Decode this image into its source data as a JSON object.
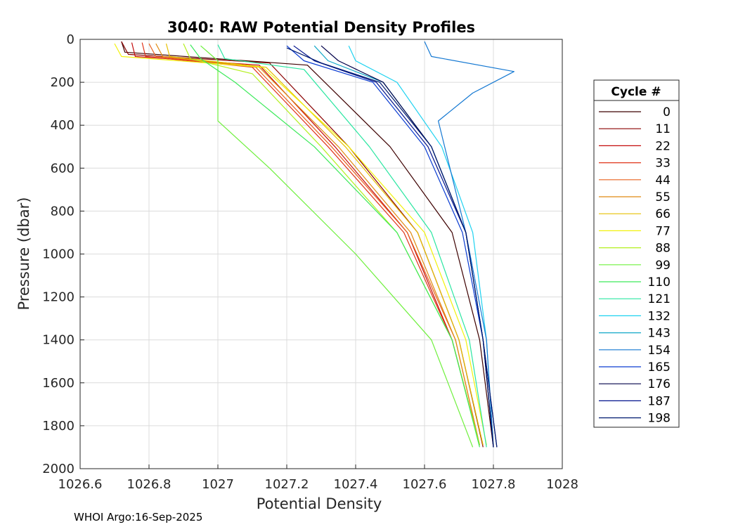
{
  "chart_data": {
    "type": "line",
    "title": "3040: RAW Potential Density Profiles",
    "xlabel": "Potential Density",
    "ylabel": "Pressure (dbar)",
    "xlim": [
      1026.6,
      1028
    ],
    "ylim": [
      0,
      2000
    ],
    "y_reversed": true,
    "grid": true,
    "x_ticks": [
      1026.6,
      1026.8,
      1027,
      1027.2,
      1027.4,
      1027.6,
      1027.8,
      1028
    ],
    "x_tick_labels": [
      "1026.6",
      "1026.8",
      "1027",
      "1027.2",
      "1027.4",
      "1027.6",
      "1027.8",
      "1028"
    ],
    "y_ticks": [
      0,
      200,
      400,
      600,
      800,
      1000,
      1200,
      1400,
      1600,
      1800,
      2000
    ],
    "y_tick_labels": [
      "0",
      "200",
      "400",
      "600",
      "800",
      "1000",
      "1200",
      "1400",
      "1600",
      "1800",
      "2000"
    ],
    "legend": {
      "title": "Cycle #",
      "position": "right-outside",
      "entries": [
        {
          "label": "0",
          "color": "#3d0000"
        },
        {
          "label": "11",
          "color": "#8a0000"
        },
        {
          "label": "22",
          "color": "#c40a0a"
        },
        {
          "label": "33",
          "color": "#e0341a"
        },
        {
          "label": "44",
          "color": "#e8601e"
        },
        {
          "label": "55",
          "color": "#e08a10"
        },
        {
          "label": "66",
          "color": "#e6c000"
        },
        {
          "label": "77",
          "color": "#f2f20a"
        },
        {
          "label": "88",
          "color": "#b4f01e"
        },
        {
          "label": "99",
          "color": "#6ef03c"
        },
        {
          "label": "110",
          "color": "#3cea5a"
        },
        {
          "label": "121",
          "color": "#28e6a0"
        },
        {
          "label": "132",
          "color": "#1ed2f0"
        },
        {
          "label": "143",
          "color": "#12a8c8"
        },
        {
          "label": "154",
          "color": "#1478d2"
        },
        {
          "label": "165",
          "color": "#0a3cd2"
        },
        {
          "label": "176",
          "color": "#00004a"
        },
        {
          "label": "187",
          "color": "#00108c"
        },
        {
          "label": "198",
          "color": "#001a70"
        }
      ]
    },
    "series": [
      {
        "name": "0",
        "color": "#3d0000",
        "x": [
          1026.72,
          1026.73,
          1027.26,
          1027.5,
          1027.68,
          1027.76,
          1027.8
        ],
        "y": [
          10,
          60,
          120,
          500,
          900,
          1400,
          1900
        ]
      },
      {
        "name": "11",
        "color": "#8a0000",
        "x": [
          1026.72,
          1026.74,
          1027.15,
          1027.38,
          1027.58,
          1027.7,
          1027.77
        ],
        "y": [
          10,
          70,
          110,
          500,
          900,
          1400,
          1900
        ]
      },
      {
        "name": "22",
        "color": "#c40a0a",
        "x": [
          1026.75,
          1026.76,
          1027.12,
          1027.34,
          1027.55,
          1027.68,
          1027.76
        ],
        "y": [
          15,
          80,
          120,
          500,
          900,
          1400,
          1890
        ]
      },
      {
        "name": "33",
        "color": "#e0341a",
        "x": [
          1026.78,
          1026.79,
          1027.1,
          1027.32,
          1027.54,
          1027.68,
          1027.76
        ],
        "y": [
          15,
          80,
          130,
          500,
          900,
          1400,
          1890
        ]
      },
      {
        "name": "44",
        "color": "#e8601e",
        "x": [
          1026.8,
          1026.82,
          1027.11,
          1027.33,
          1027.55,
          1027.69,
          1027.76
        ],
        "y": [
          20,
          80,
          130,
          500,
          900,
          1400,
          1890
        ]
      },
      {
        "name": "55",
        "color": "#e08a10",
        "x": [
          1026.82,
          1026.84,
          1027.12,
          1027.35,
          1027.56,
          1027.69,
          1027.76
        ],
        "y": [
          20,
          80,
          130,
          500,
          900,
          1400,
          1890
        ]
      },
      {
        "name": "66",
        "color": "#e6c000",
        "x": [
          1026.85,
          1026.86,
          1027.14,
          1027.37,
          1027.58,
          1027.7,
          1027.77
        ],
        "y": [
          20,
          80,
          130,
          500,
          900,
          1400,
          1890
        ]
      },
      {
        "name": "77",
        "color": "#f2f20a",
        "x": [
          1026.7,
          1026.72,
          1027.13,
          1027.38,
          1027.6,
          1027.72,
          1027.78
        ],
        "y": [
          20,
          80,
          130,
          500,
          900,
          1400,
          1890
        ]
      },
      {
        "name": "88",
        "color": "#b4f01e",
        "x": [
          1026.9,
          1026.92,
          1027.1,
          1027.3,
          1027.52,
          1027.68,
          1027.76
        ],
        "y": [
          20,
          90,
          160,
          500,
          900,
          1400,
          1890
        ]
      },
      {
        "name": "99",
        "color": "#6ef03c",
        "x": [
          1026.95,
          1027.0,
          1027.0,
          1027.15,
          1027.4,
          1027.62,
          1027.74
        ],
        "y": [
          30,
          100,
          380,
          600,
          1000,
          1400,
          1900
        ]
      },
      {
        "name": "110",
        "color": "#3cea5a",
        "x": [
          1026.92,
          1026.95,
          1027.05,
          1027.28,
          1027.52,
          1027.68,
          1027.76
        ],
        "y": [
          25,
          90,
          200,
          500,
          900,
          1400,
          1900
        ]
      },
      {
        "name": "121",
        "color": "#28e6a0",
        "x": [
          1027.0,
          1027.02,
          1027.25,
          1027.44,
          1027.62,
          1027.73,
          1027.78
        ],
        "y": [
          25,
          90,
          140,
          500,
          900,
          1400,
          1900
        ]
      },
      {
        "name": "132",
        "color": "#1ed2f0",
        "x": [
          1027.38,
          1027.4,
          1027.52,
          1027.65,
          1027.74,
          1027.78,
          1027.8
        ],
        "y": [
          30,
          100,
          200,
          500,
          900,
          1400,
          1900
        ]
      },
      {
        "name": "143",
        "color": "#12a8c8",
        "x": [
          1027.28,
          1027.32,
          1027.48,
          1027.62,
          1027.72,
          1027.77,
          1027.8
        ],
        "y": [
          30,
          100,
          200,
          500,
          900,
          1400,
          1900
        ]
      },
      {
        "name": "154",
        "color": "#1478d2",
        "x": [
          1027.6,
          1027.62,
          1027.86,
          1027.74,
          1027.64,
          1027.72,
          1027.78,
          1027.8
        ],
        "y": [
          10,
          80,
          150,
          250,
          380,
          900,
          1400,
          1900
        ]
      },
      {
        "name": "165",
        "color": "#0a3cd2",
        "x": [
          1027.2,
          1027.25,
          1027.45,
          1027.6,
          1027.71,
          1027.77,
          1027.8
        ],
        "y": [
          30,
          100,
          200,
          500,
          900,
          1400,
          1900
        ]
      },
      {
        "name": "176",
        "color": "#00004a",
        "x": [
          1027.3,
          1027.35,
          1027.48,
          1027.62,
          1027.72,
          1027.77,
          1027.8
        ],
        "y": [
          30,
          100,
          200,
          500,
          900,
          1400,
          1900
        ]
      },
      {
        "name": "187",
        "color": "#00108c",
        "x": [
          1027.22,
          1027.28,
          1027.46,
          1027.61,
          1027.72,
          1027.77,
          1027.81
        ],
        "y": [
          30,
          100,
          200,
          500,
          900,
          1400,
          1900
        ]
      },
      {
        "name": "198",
        "color": "#001a70",
        "x": [
          1027.2,
          1027.3,
          1027.47,
          1027.62,
          1027.72,
          1027.77,
          1027.81
        ],
        "y": [
          40,
          110,
          200,
          500,
          900,
          1400,
          1900
        ]
      }
    ]
  },
  "footer": {
    "text": "WHOI Argo:16-Sep-2025"
  }
}
